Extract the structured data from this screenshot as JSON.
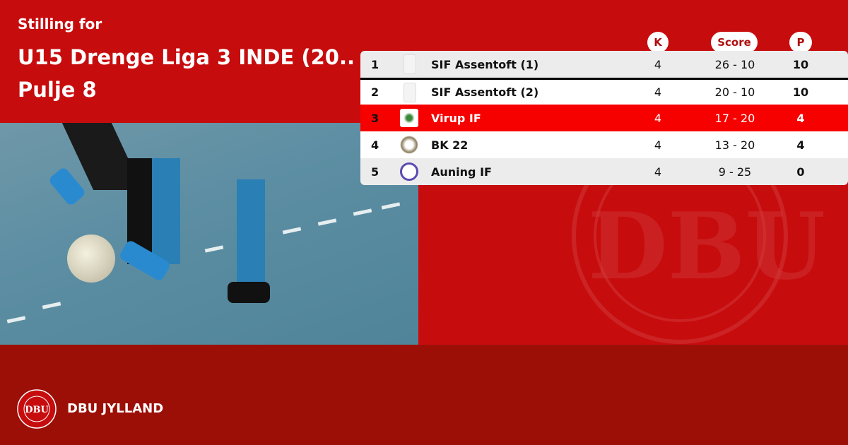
{
  "header": {
    "subtitle": "Stilling for",
    "title_line1": "U15 Drenge Liga 3 INDE (20..",
    "title_line2": "Pulje 8"
  },
  "table": {
    "columns": {
      "played": "K",
      "score": "Score",
      "points": "P"
    },
    "rows": [
      {
        "pos": "1",
        "team": "SIF Assentoft (1)",
        "played": "4",
        "score": "26 - 10",
        "points": "10",
        "highlight": false
      },
      {
        "pos": "2",
        "team": "SIF Assentoft (2)",
        "played": "4",
        "score": "20 - 10",
        "points": "10",
        "highlight": false
      },
      {
        "pos": "3",
        "team": "Virup IF",
        "played": "4",
        "score": "17 - 20",
        "points": "4",
        "highlight": true
      },
      {
        "pos": "4",
        "team": "BK 22",
        "played": "4",
        "score": "13 - 20",
        "points": "4",
        "highlight": false
      },
      {
        "pos": "5",
        "team": "Auning IF",
        "played": "4",
        "score": "9 - 25",
        "points": "0",
        "highlight": false
      }
    ]
  },
  "footer": {
    "brand": "DBU JYLLAND",
    "seal_text": "DANSK BOLDSPIL-UNION 1889 DBU"
  },
  "colors": {
    "primary": "#c70c0e",
    "footer": "#9c0f07",
    "highlight": "#f70000"
  }
}
